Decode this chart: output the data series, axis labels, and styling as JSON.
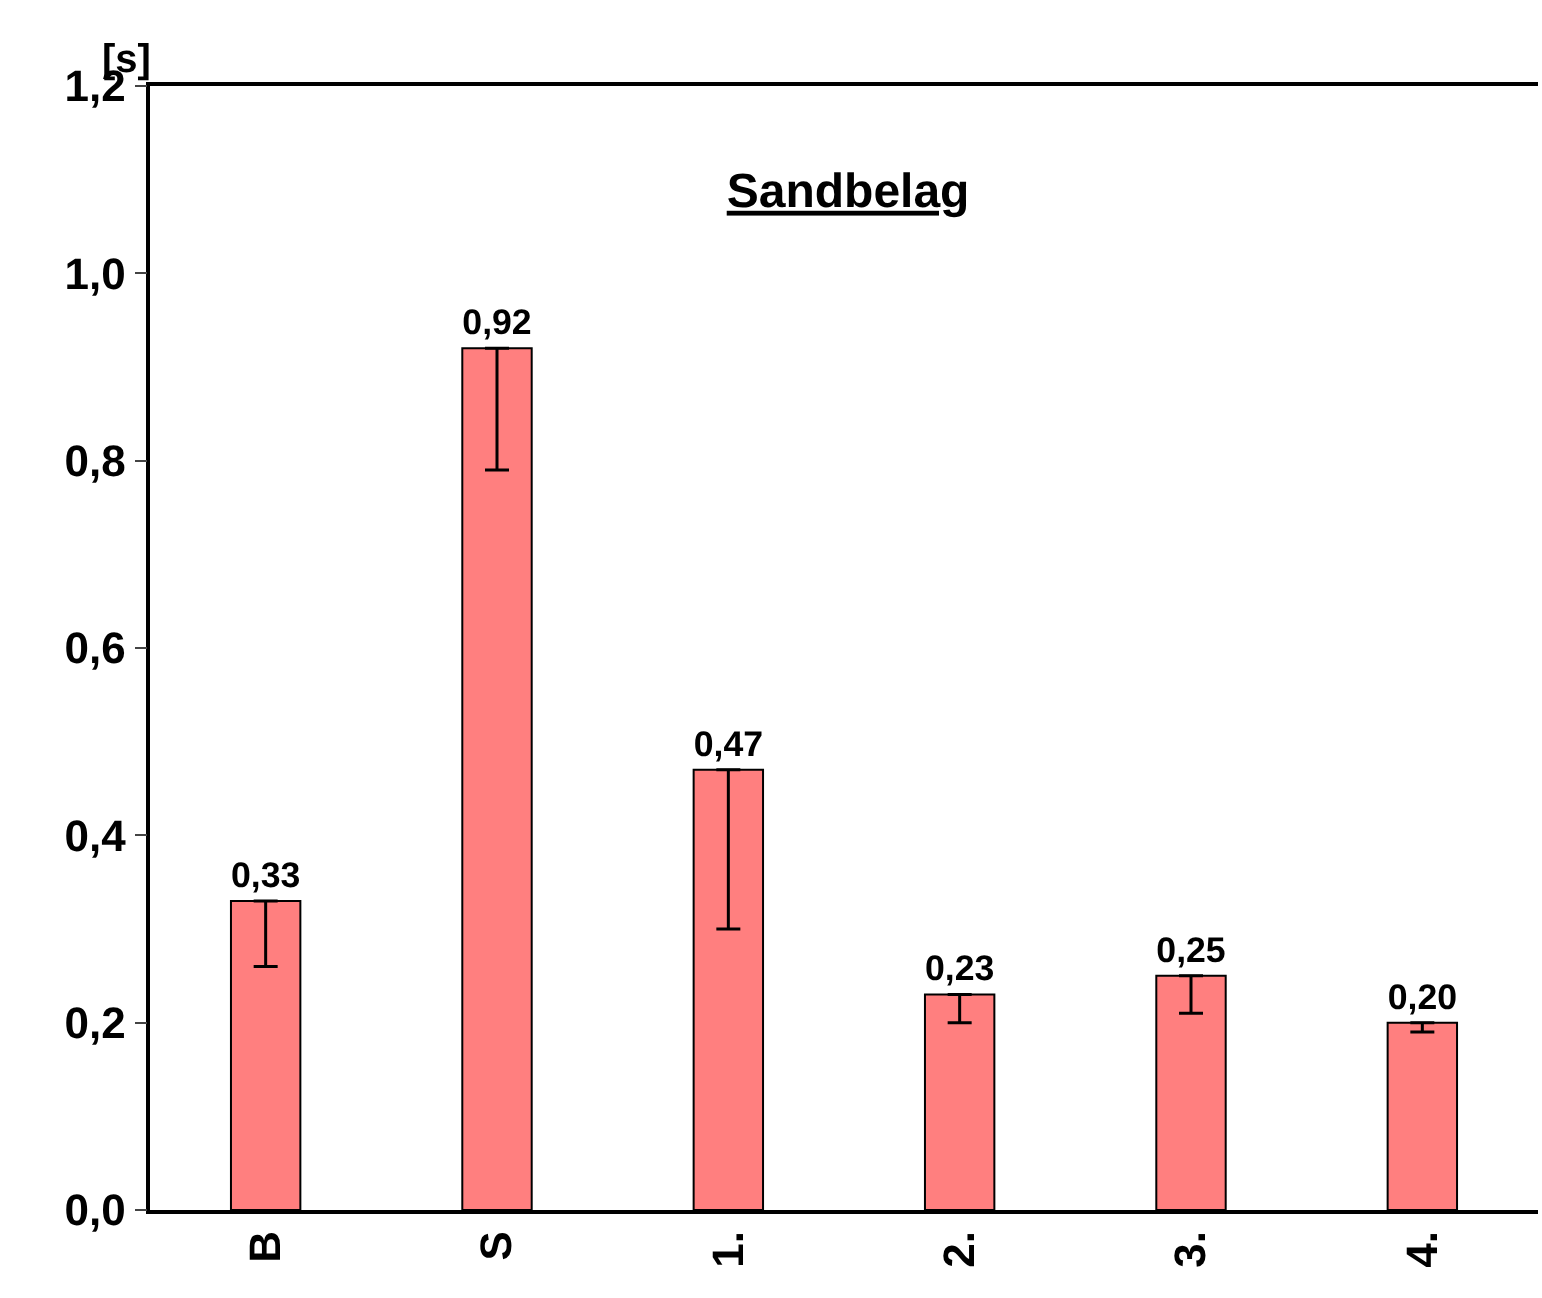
{
  "chart_data": {
    "type": "bar",
    "title": "Sandbelag",
    "ylabel": "[s]",
    "categories": [
      "B",
      "S",
      "1.",
      "2.",
      "3.",
      "4."
    ],
    "values": [
      0.33,
      0.92,
      0.47,
      0.23,
      0.25,
      0.2
    ],
    "value_labels": [
      "0,33",
      "0,92",
      "0,47",
      "0,23",
      "0,25",
      "0,20"
    ],
    "errors": [
      [
        0.26,
        0.33
      ],
      [
        0.79,
        0.92
      ],
      [
        0.3,
        0.47
      ],
      [
        0.2,
        0.23
      ],
      [
        0.21,
        0.25
      ],
      [
        0.19,
        0.2
      ]
    ],
    "color": "#ff7f7f",
    "ylim": [
      0,
      1.2
    ],
    "yticks": [
      {
        "value": 0,
        "label": "0,0"
      },
      {
        "value": 0.2,
        "label": "0,2"
      },
      {
        "value": 0.4,
        "label": "0,4"
      },
      {
        "value": 0.6,
        "label": "0,6"
      },
      {
        "value": 0.8,
        "label": "0,8"
      },
      {
        "value": 1.0,
        "label": "1,0"
      },
      {
        "value": 1.2,
        "label": "1,2"
      }
    ],
    "grid": false,
    "legend": false
  }
}
